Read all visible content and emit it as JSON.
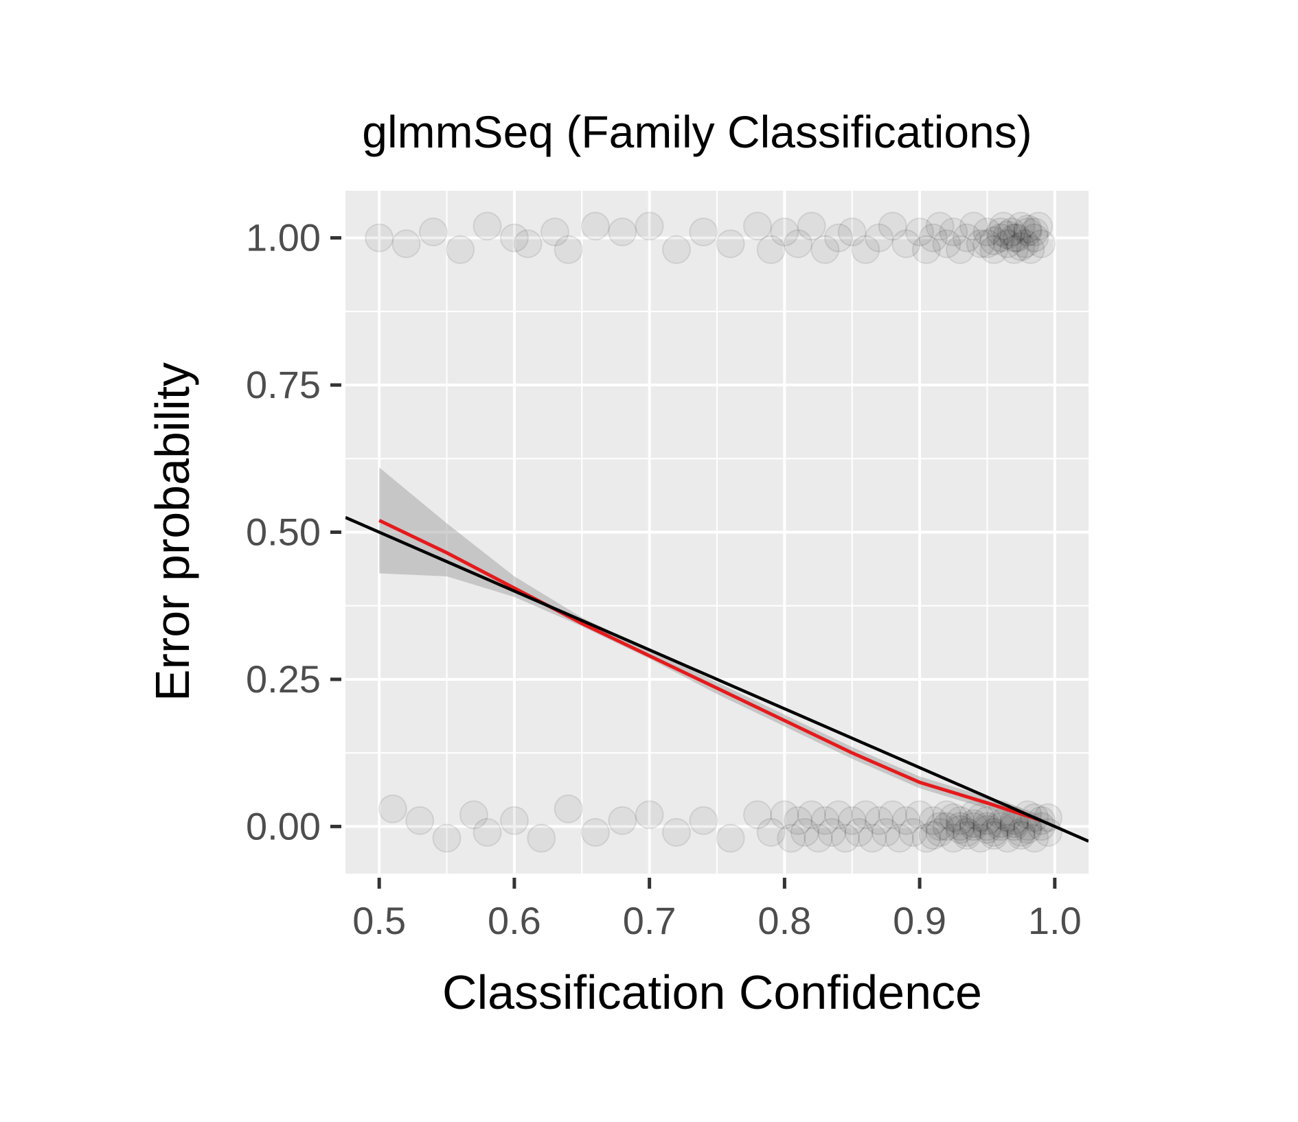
{
  "chart_data": {
    "type": "scatter",
    "title": "glmmSeq (Family Classifications)",
    "xlabel": "Classification Confidence",
    "ylabel": "Error probability",
    "xlim": [
      0.475,
      1.025
    ],
    "ylim": [
      -0.08,
      1.08
    ],
    "x_ticks": [
      "0.5",
      "0.6",
      "0.7",
      "0.8",
      "0.9",
      "1.0"
    ],
    "x_tick_values": [
      0.5,
      0.6,
      0.7,
      0.8,
      0.9,
      1.0
    ],
    "y_ticks": [
      "0.00",
      "0.25",
      "0.50",
      "0.75",
      "1.00"
    ],
    "y_tick_values": [
      0.0,
      0.25,
      0.5,
      0.75,
      1.0
    ],
    "grid": true,
    "background_color": "#ebebeb",
    "grid_color": "#ffffff",
    "point_color": "#000000",
    "point_opacity": 0.06,
    "points_at_one": [
      [
        0.5,
        1.0
      ],
      [
        0.52,
        0.99
      ],
      [
        0.54,
        1.01
      ],
      [
        0.56,
        0.98
      ],
      [
        0.58,
        1.02
      ],
      [
        0.6,
        1.0
      ],
      [
        0.61,
        0.99
      ],
      [
        0.63,
        1.01
      ],
      [
        0.64,
        0.98
      ],
      [
        0.66,
        1.02
      ],
      [
        0.68,
        1.01
      ],
      [
        0.7,
        1.02
      ],
      [
        0.72,
        0.98
      ],
      [
        0.74,
        1.01
      ],
      [
        0.76,
        0.99
      ],
      [
        0.78,
        1.02
      ],
      [
        0.79,
        0.98
      ],
      [
        0.8,
        1.01
      ],
      [
        0.81,
        0.99
      ],
      [
        0.82,
        1.02
      ],
      [
        0.83,
        0.98
      ],
      [
        0.84,
        1.0
      ],
      [
        0.85,
        1.01
      ],
      [
        0.86,
        0.98
      ],
      [
        0.87,
        1.0
      ],
      [
        0.88,
        1.02
      ],
      [
        0.89,
        0.99
      ],
      [
        0.9,
        1.01
      ],
      [
        0.905,
        0.98
      ],
      [
        0.91,
        1.0
      ],
      [
        0.915,
        1.02
      ],
      [
        0.92,
        0.99
      ],
      [
        0.925,
        1.01
      ],
      [
        0.93,
        0.98
      ],
      [
        0.935,
        1.0
      ],
      [
        0.94,
        1.02
      ],
      [
        0.945,
        0.99
      ],
      [
        0.95,
        1.01
      ],
      [
        0.955,
        0.98
      ],
      [
        0.96,
        1.0
      ],
      [
        0.962,
        1.02
      ],
      [
        0.965,
        0.99
      ],
      [
        0.968,
        1.01
      ],
      [
        0.97,
        0.98
      ],
      [
        0.972,
        1.0
      ],
      [
        0.975,
        1.02
      ],
      [
        0.978,
        0.99
      ],
      [
        0.98,
        1.01
      ],
      [
        0.982,
        0.98
      ],
      [
        0.985,
        1.0
      ],
      [
        0.988,
        1.02
      ],
      [
        0.99,
        0.99
      ],
      [
        0.96,
        1.01
      ],
      [
        0.97,
        1.0
      ],
      [
        0.975,
        0.985
      ],
      [
        0.98,
        1.015
      ],
      [
        0.965,
        1.005
      ],
      [
        0.955,
        0.995
      ],
      [
        0.985,
        1.01
      ],
      [
        0.95,
        0.99
      ]
    ],
    "points_at_zero": [
      [
        0.51,
        0.03
      ],
      [
        0.53,
        0.01
      ],
      [
        0.55,
        -0.02
      ],
      [
        0.57,
        0.02
      ],
      [
        0.58,
        -0.01
      ],
      [
        0.6,
        0.01
      ],
      [
        0.62,
        -0.02
      ],
      [
        0.64,
        0.03
      ],
      [
        0.66,
        -0.01
      ],
      [
        0.68,
        0.01
      ],
      [
        0.7,
        0.02
      ],
      [
        0.72,
        -0.01
      ],
      [
        0.74,
        0.01
      ],
      [
        0.76,
        -0.02
      ],
      [
        0.78,
        0.02
      ],
      [
        0.79,
        -0.01
      ],
      [
        0.8,
        0.02
      ],
      [
        0.805,
        -0.02
      ],
      [
        0.81,
        0.01
      ],
      [
        0.815,
        -0.01
      ],
      [
        0.82,
        0.02
      ],
      [
        0.825,
        -0.02
      ],
      [
        0.83,
        0.01
      ],
      [
        0.835,
        -0.01
      ],
      [
        0.84,
        0.02
      ],
      [
        0.845,
        -0.02
      ],
      [
        0.85,
        0.01
      ],
      [
        0.855,
        -0.01
      ],
      [
        0.86,
        0.02
      ],
      [
        0.865,
        -0.02
      ],
      [
        0.87,
        0.01
      ],
      [
        0.875,
        -0.01
      ],
      [
        0.88,
        0.02
      ],
      [
        0.885,
        -0.02
      ],
      [
        0.89,
        0.01
      ],
      [
        0.895,
        -0.01
      ],
      [
        0.9,
        0.02
      ],
      [
        0.905,
        -0.02
      ],
      [
        0.91,
        0.01
      ],
      [
        0.915,
        -0.01
      ],
      [
        0.92,
        0.02
      ],
      [
        0.925,
        -0.02
      ],
      [
        0.93,
        0.01
      ],
      [
        0.935,
        -0.01
      ],
      [
        0.94,
        0.02
      ],
      [
        0.945,
        -0.02
      ],
      [
        0.95,
        0.01
      ],
      [
        0.955,
        -0.01
      ],
      [
        0.96,
        0.02
      ],
      [
        0.965,
        -0.02
      ],
      [
        0.97,
        0.01
      ],
      [
        0.975,
        -0.01
      ],
      [
        0.98,
        0.02
      ],
      [
        0.985,
        -0.02
      ],
      [
        0.99,
        0.01
      ],
      [
        0.995,
        -0.01
      ],
      [
        0.92,
        0.0
      ],
      [
        0.93,
        0.0
      ],
      [
        0.94,
        0.0
      ],
      [
        0.95,
        0.0
      ],
      [
        0.96,
        0.0
      ],
      [
        0.97,
        0.0
      ],
      [
        0.98,
        0.0
      ],
      [
        0.99,
        0.0
      ],
      [
        0.925,
        0.015
      ],
      [
        0.935,
        -0.015
      ],
      [
        0.945,
        0.015
      ],
      [
        0.955,
        -0.015
      ],
      [
        0.965,
        0.015
      ],
      [
        0.975,
        -0.015
      ],
      [
        0.985,
        0.015
      ],
      [
        0.915,
        0.0
      ],
      [
        0.91,
        -0.015
      ],
      [
        0.995,
        0.015
      ],
      [
        0.96,
        0.005
      ],
      [
        0.95,
        -0.005
      ],
      [
        0.94,
        0.005
      ],
      [
        0.93,
        -0.005
      ],
      [
        0.97,
        0.005
      ],
      [
        0.98,
        -0.005
      ]
    ],
    "series": [
      {
        "name": "",
        "kind": "curve",
        "color": "#e41a1c",
        "x": [
          0.5,
          0.55,
          0.6,
          0.65,
          0.7,
          0.75,
          0.8,
          0.85,
          0.9,
          0.95,
          0.99
        ],
        "y": [
          0.52,
          0.465,
          0.405,
          0.345,
          0.29,
          0.235,
          0.18,
          0.125,
          0.075,
          0.04,
          0.01
        ]
      },
      {
        "name": "",
        "kind": "reference_line",
        "color": "#000000",
        "x": [
          0.475,
          1.025
        ],
        "y": [
          0.525,
          -0.025
        ]
      }
    ],
    "confidence_band": {
      "color": "#999999",
      "opacity": 0.45,
      "x": [
        0.5,
        0.55,
        0.6,
        0.65,
        0.7,
        0.75,
        0.8,
        0.85,
        0.9,
        0.95,
        0.99
      ],
      "lower": [
        0.43,
        0.425,
        0.39,
        0.34,
        0.285,
        0.225,
        0.17,
        0.115,
        0.065,
        0.03,
        0.0
      ],
      "upper": [
        0.61,
        0.515,
        0.425,
        0.355,
        0.3,
        0.245,
        0.19,
        0.135,
        0.085,
        0.05,
        0.02
      ]
    }
  }
}
